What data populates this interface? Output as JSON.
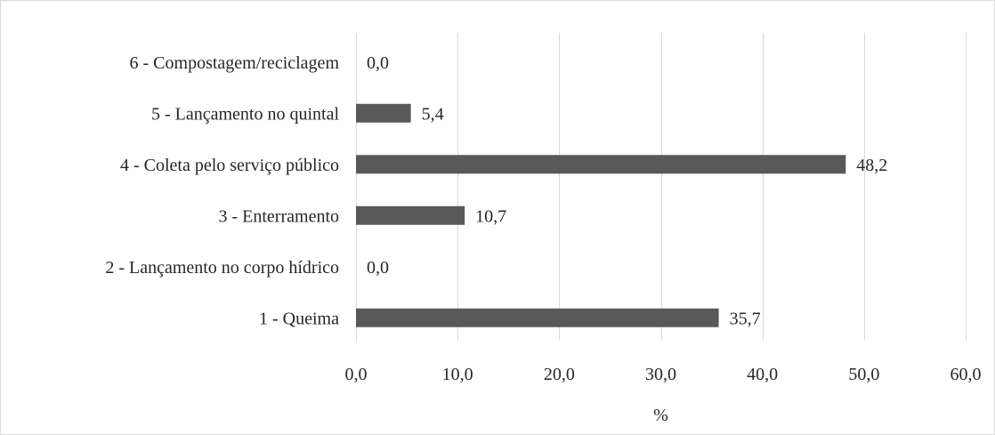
{
  "chart_data": {
    "type": "bar",
    "orientation": "horizontal",
    "categories": [
      "6 - Compostagem/reciclagem",
      "5 - Lançamento no quintal",
      "4 - Coleta pelo serviço público",
      "3 - Enterramento",
      "2 - Lançamento no corpo hídrico",
      "1 - Queima"
    ],
    "values": [
      0.0,
      5.4,
      48.2,
      10.7,
      0.0,
      35.7
    ],
    "value_labels": [
      "0,0",
      "5,4",
      "48,2",
      "10,7",
      "0,0",
      "35,7"
    ],
    "xlabel": "%",
    "xlim": [
      0,
      60
    ],
    "x_ticks": [
      0,
      10,
      20,
      30,
      40,
      50,
      60
    ],
    "x_tick_labels": [
      "0,0",
      "10,0",
      "20,0",
      "30,0",
      "40,0",
      "50,0",
      "60,0"
    ],
    "grid": "vertical",
    "legend": "none",
    "bar_color": "#595959",
    "grid_color": "#d9d9d9"
  }
}
